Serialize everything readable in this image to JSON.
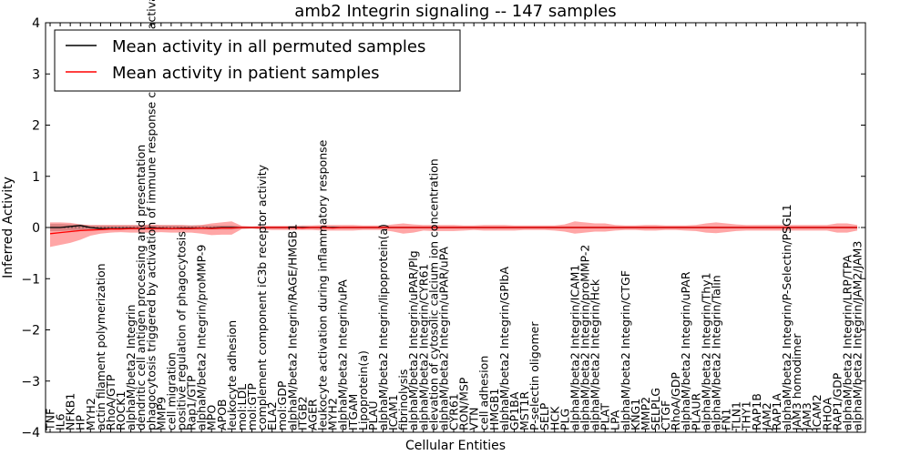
{
  "chart_data": {
    "type": "line",
    "title": "amb2 Integrin signaling -- 147 samples",
    "xlabel": "Cellular Entities",
    "ylabel": "Inferred Activity",
    "ylim": [
      -4,
      4
    ],
    "yticks": [
      -4,
      -3,
      -2,
      -1,
      0,
      1,
      2,
      3,
      4
    ],
    "legend": {
      "position": "top-left",
      "entries": [
        {
          "label": "Mean activity in all permuted samples",
          "color": "#000000"
        },
        {
          "label": "Mean activity in patient samples",
          "color": "#ff0000"
        }
      ]
    },
    "categories": [
      "TNF",
      "IL6",
      "NFKB1",
      "HP",
      "MYH2",
      "actin filament polymerization",
      "RhoA/GTP",
      "ROCK1",
      "alphaM/beta2 Integrin",
      "dendritic cell antigen processing and presentation",
      "phagocytosis triggered by activation of immune response cell surface activating receptor",
      "MMP9",
      "cell migration",
      "positive regulation of phagocytosis",
      "Rap1/GTP",
      "alphaM/beta2 Integrin/proMMP-9",
      "MPO",
      "APOB",
      "leukocyte adhesion",
      "mol:LDL",
      "mol:GTP",
      "complement component iC3b receptor activity",
      "ELA2",
      "mol:GDP",
      "alphaM/beta2 Integrin/RAGE/HMGB1",
      "ITGB2",
      "AGER",
      "leukocyte activation during inflammatory response",
      "MYH2",
      "alphaM/beta2 Integrin/uPA",
      "ITGAM",
      "Lipoprotein(a)",
      "PLAU",
      "alphaM/beta2 Integrin/lipoprotein(a)",
      "ICAM1",
      "fibrinolysis",
      "alphaM/beta2 Integrin/uPAR/Plg",
      "alphaM/beta2 Integrin/CYR61",
      "elevation of cytosolic calcium ion concentration",
      "alphaM/beta2 Integrin/uPAR/uPA",
      "CYR61",
      "RON/MSP",
      "VTN",
      "cell adhesion",
      "HMGB1",
      "alphaM/beta2 Integrin/GPIbA",
      "GP1BA",
      "MST1R",
      "P-selectin oligomer",
      "SELP",
      "HCK",
      "PLG",
      "alphaM/beta2 Integrin/ICAM1",
      "alphaM/beta2 Integrin/proMMP-2",
      "alphaM/beta2 Integrin/Hck",
      "PLAT",
      "LPA",
      "alphaM/beta2 Integrin/CTGF",
      "KNG1",
      "MMP2",
      "SELPLG",
      "CTGF",
      "RhoA/GDP",
      "alphaM/beta2 Integrin/uPAR",
      "PLAUR",
      "alphaM/beta2 Integrin/Thy1",
      "alphaM/beta2 Integrin/Talin",
      "FN1",
      "TLN1",
      "THY1",
      "RAP1B",
      "JAM2",
      "RAP1A",
      "alphaM/beta2 Integrin/P-Selectin/PSGL1",
      "JAM3 homodimer",
      "JAM3",
      "ICAM2",
      "RHOA",
      "RAP1/GDP",
      "alphaM/beta2 Integrin/LRP/TPA",
      "alphaM/beta2 Integrin/JAM2/JAM3"
    ],
    "series": [
      {
        "name": "Mean activity in all permuted samples",
        "color": "#000000",
        "values": [
          0.0,
          0.0,
          0.02,
          0.04,
          0.0,
          -0.02,
          -0.02,
          -0.02,
          -0.01,
          -0.02,
          -0.01,
          -0.01,
          -0.02,
          -0.01,
          -0.01,
          -0.01,
          -0.01,
          0.0,
          0.0,
          0.0,
          0.0,
          0.0,
          0.0,
          0.0,
          0.0,
          0.0,
          0.0,
          0.0,
          0.0,
          0.0,
          0.0,
          0.0,
          0.0,
          0.0,
          0.0,
          0.0,
          0.0,
          0.0,
          0.0,
          0.0,
          0.0,
          0.0,
          0.0,
          0.0,
          0.0,
          0.0,
          0.0,
          0.0,
          0.0,
          0.0,
          0.0,
          0.0,
          0.0,
          0.0,
          0.0,
          0.0,
          0.0,
          0.0,
          0.0,
          0.0,
          0.0,
          0.0,
          0.0,
          0.0,
          0.0,
          0.0,
          0.0,
          0.0,
          0.0,
          0.0,
          0.0,
          0.0,
          0.0,
          0.0,
          0.0,
          0.0,
          0.0,
          0.0,
          0.0,
          0.0,
          0.0
        ]
      },
      {
        "name": "Mean activity in patient samples",
        "color": "#ff0000",
        "values": [
          -0.12,
          -0.1,
          -0.08,
          -0.06,
          -0.05,
          -0.04,
          -0.03,
          -0.03,
          -0.02,
          -0.02,
          -0.02,
          -0.02,
          -0.02,
          -0.02,
          -0.02,
          -0.01,
          -0.02,
          -0.01,
          -0.01,
          0.0,
          0.0,
          0.0,
          0.0,
          0.0,
          0.0,
          -0.01,
          0.0,
          0.0,
          -0.01,
          0.0,
          0.0,
          0.0,
          0.0,
          0.0,
          0.0,
          0.0,
          0.0,
          0.0,
          0.0,
          0.0,
          0.0,
          0.0,
          0.0,
          0.0,
          0.0,
          0.0,
          0.0,
          0.0,
          0.0,
          0.0,
          0.0,
          0.0,
          0.0,
          0.0,
          0.0,
          0.0,
          0.0,
          0.0,
          0.0,
          0.0,
          0.0,
          0.0,
          0.0,
          0.0,
          0.0,
          0.0,
          0.0,
          0.0,
          0.0,
          0.0,
          0.0,
          0.0,
          0.0,
          0.0,
          0.0,
          0.0,
          0.0,
          0.0,
          0.0,
          0.0,
          0.0
        ]
      }
    ],
    "patient_band": {
      "upper": [
        0.1,
        0.1,
        0.09,
        0.06,
        0.05,
        0.05,
        0.05,
        0.05,
        0.05,
        0.05,
        0.06,
        0.05,
        0.05,
        0.05,
        0.04,
        0.05,
        0.08,
        0.1,
        0.12,
        0.03,
        0.02,
        0.03,
        0.03,
        0.03,
        0.03,
        0.04,
        0.04,
        0.05,
        0.05,
        0.05,
        0.05,
        0.04,
        0.04,
        0.04,
        0.06,
        0.08,
        0.06,
        0.05,
        0.05,
        0.05,
        0.05,
        0.04,
        0.04,
        0.05,
        0.05,
        0.05,
        0.04,
        0.04,
        0.04,
        0.04,
        0.04,
        0.06,
        0.12,
        0.1,
        0.08,
        0.08,
        0.05,
        0.04,
        0.04,
        0.05,
        0.05,
        0.04,
        0.04,
        0.04,
        0.05,
        0.08,
        0.1,
        0.08,
        0.06,
        0.05,
        0.05,
        0.05,
        0.05,
        0.05,
        0.05,
        0.05,
        0.05,
        0.05,
        0.08,
        0.08,
        0.05
      ],
      "lower": [
        -0.38,
        -0.34,
        -0.3,
        -0.24,
        -0.16,
        -0.12,
        -0.1,
        -0.09,
        -0.1,
        -0.1,
        -0.1,
        -0.09,
        -0.1,
        -0.1,
        -0.1,
        -0.12,
        -0.15,
        -0.14,
        -0.14,
        -0.03,
        -0.02,
        -0.04,
        -0.05,
        -0.05,
        -0.05,
        -0.05,
        -0.05,
        -0.06,
        -0.06,
        -0.06,
        -0.06,
        -0.05,
        -0.05,
        -0.05,
        -0.08,
        -0.12,
        -0.1,
        -0.06,
        -0.07,
        -0.07,
        -0.07,
        -0.06,
        -0.05,
        -0.06,
        -0.06,
        -0.06,
        -0.06,
        -0.05,
        -0.05,
        -0.05,
        -0.06,
        -0.08,
        -0.12,
        -0.1,
        -0.08,
        -0.08,
        -0.06,
        -0.05,
        -0.05,
        -0.06,
        -0.06,
        -0.05,
        -0.05,
        -0.06,
        -0.07,
        -0.1,
        -0.11,
        -0.09,
        -0.07,
        -0.06,
        -0.06,
        -0.06,
        -0.06,
        -0.06,
        -0.06,
        -0.06,
        -0.06,
        -0.06,
        -0.1,
        -0.1,
        -0.06
      ],
      "color": "#ff0000"
    },
    "permuted_band": {
      "upper": [
        0.07,
        0.07,
        0.06,
        0.06,
        0.04,
        0.04,
        0.04,
        0.04,
        0.04,
        0.04,
        0.04,
        0.04,
        0.04,
        0.04,
        0.04,
        0.04,
        0.04,
        0.04,
        0.04,
        0.02,
        0.02,
        0.02,
        0.02,
        0.02,
        0.02,
        0.02,
        0.02,
        0.02,
        0.02,
        0.02,
        0.02,
        0.02,
        0.02,
        0.02,
        0.02,
        0.02,
        0.02,
        0.02,
        0.02,
        0.02,
        0.02,
        0.02,
        0.02,
        0.02,
        0.02,
        0.02,
        0.02,
        0.02,
        0.02,
        0.02,
        0.02,
        0.02,
        0.02,
        0.02,
        0.02,
        0.02,
        0.02,
        0.02,
        0.02,
        0.02,
        0.02,
        0.02,
        0.02,
        0.02,
        0.02,
        0.02,
        0.02,
        0.02,
        0.02,
        0.02,
        0.02,
        0.02,
        0.02,
        0.02,
        0.02,
        0.02,
        0.02,
        0.02,
        0.02,
        0.02,
        0.02
      ],
      "lower": [
        -0.07,
        -0.07,
        -0.06,
        -0.06,
        -0.04,
        -0.04,
        -0.04,
        -0.04,
        -0.04,
        -0.04,
        -0.04,
        -0.04,
        -0.04,
        -0.04,
        -0.04,
        -0.04,
        -0.04,
        -0.04,
        -0.04,
        -0.02,
        -0.02,
        -0.02,
        -0.02,
        -0.02,
        -0.02,
        -0.02,
        -0.02,
        -0.02,
        -0.02,
        -0.02,
        -0.02,
        -0.02,
        -0.02,
        -0.02,
        -0.02,
        -0.02,
        -0.02,
        -0.02,
        -0.02,
        -0.02,
        -0.02,
        -0.02,
        -0.02,
        -0.02,
        -0.02,
        -0.02,
        -0.02,
        -0.02,
        -0.02,
        -0.02,
        -0.02,
        -0.02,
        -0.02,
        -0.02,
        -0.02,
        -0.02,
        -0.02,
        -0.02,
        -0.02,
        -0.02,
        -0.02,
        -0.02,
        -0.02,
        -0.02,
        -0.02,
        -0.02,
        -0.02,
        -0.02,
        -0.02,
        -0.02,
        -0.02,
        -0.02,
        -0.02,
        -0.02,
        -0.02,
        -0.02,
        -0.02,
        -0.02,
        -0.02,
        -0.02,
        -0.02
      ],
      "color": "#888888"
    }
  }
}
